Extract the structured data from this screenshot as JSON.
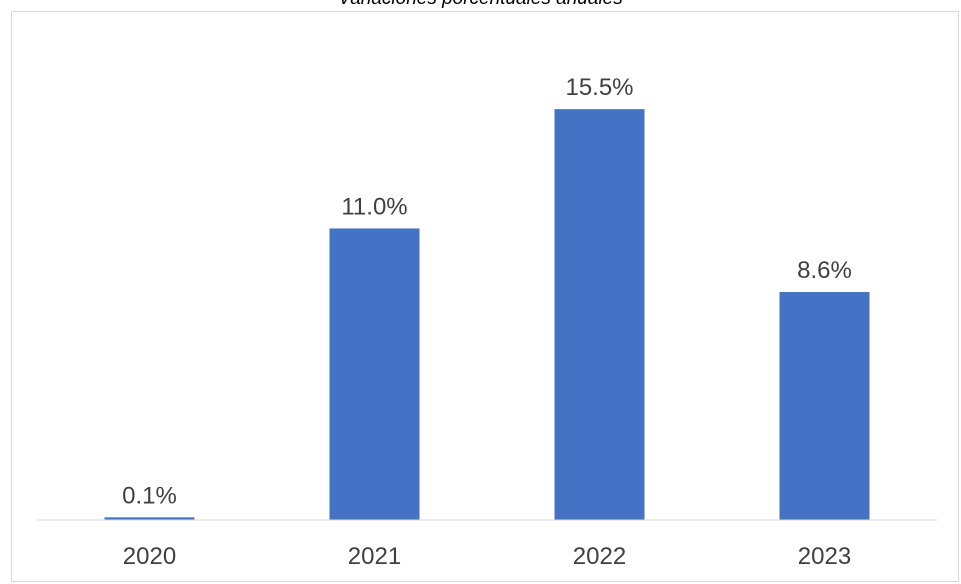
{
  "chart_data": {
    "type": "bar",
    "title": "Variaciones porcentuales anuales",
    "categories": [
      "2020",
      "2021",
      "2022",
      "2023"
    ],
    "values": [
      0.1,
      11.0,
      15.5,
      8.6
    ],
    "data_labels": [
      "0.1%",
      "11.0%",
      "15.5%",
      "8.6%"
    ],
    "xlabel": "",
    "ylabel": "",
    "ylim": [
      0,
      16.6
    ],
    "grid": false,
    "legend": "none",
    "bar_color": "#4472C4",
    "axis_color": "#d9d9d9"
  }
}
